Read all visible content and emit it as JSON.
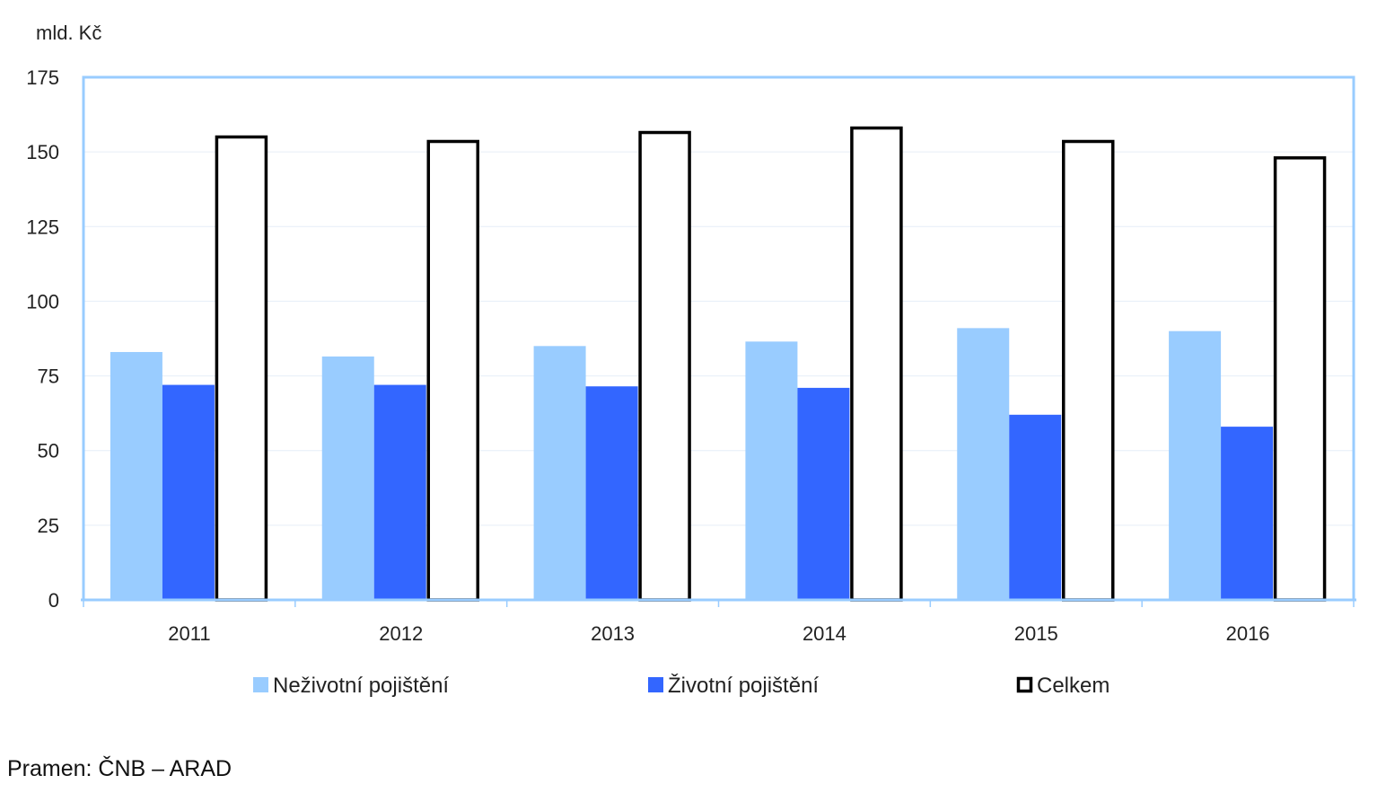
{
  "chart_data": {
    "type": "bar",
    "unit_label": "mld. Kč",
    "categories": [
      "2011",
      "2012",
      "2013",
      "2014",
      "2015",
      "2016"
    ],
    "series": [
      {
        "name": "Neživotní pojištění",
        "values": [
          83,
          81.5,
          85,
          86.5,
          91,
          90
        ],
        "color": "#99ccff",
        "style": "fill"
      },
      {
        "name": "Životní pojištění",
        "values": [
          72,
          72,
          71.5,
          71,
          62,
          58
        ],
        "color": "#3366ff",
        "style": "fill"
      },
      {
        "name": "Celkem",
        "values": [
          155,
          153.5,
          156.5,
          158,
          153.5,
          148
        ],
        "color": "#000000",
        "style": "outline"
      }
    ],
    "ylim": [
      0,
      175
    ],
    "yticks": [
      "0",
      "25",
      "50",
      "75",
      "100",
      "125",
      "150",
      "175"
    ],
    "legend_position": "bottom",
    "grid": true,
    "plot_border_color": "#99ccff"
  },
  "source_note": "Pramen: ČNB – ARAD"
}
